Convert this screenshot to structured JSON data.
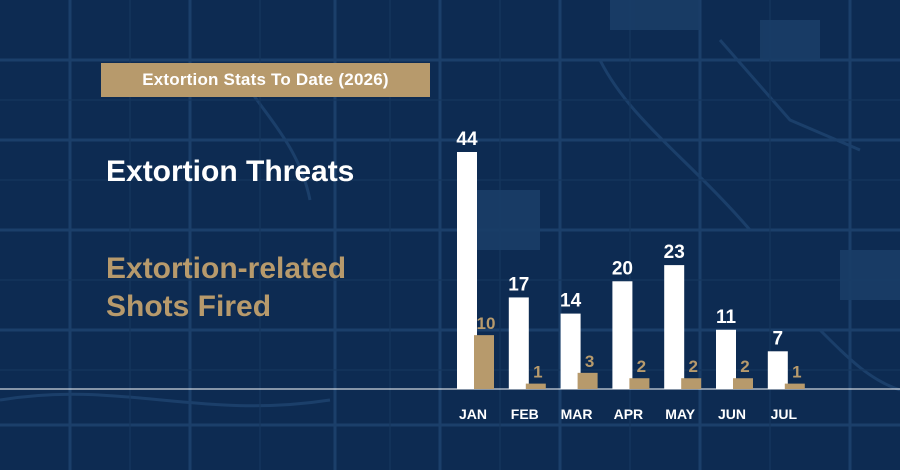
{
  "title": "Extortion Stats To Date (2026)",
  "legend": {
    "threats": "Extortion Threats",
    "shots": "Extortion-related Shots Fired"
  },
  "colors": {
    "background": "#0d2b52",
    "threats": "#ffffff",
    "shots": "#b79a6c",
    "map_lines": "#1f4470"
  },
  "chart_data": {
    "type": "bar",
    "title": "Extortion Stats To Date (2026)",
    "categories": [
      "JAN",
      "FEB",
      "MAR",
      "APR",
      "MAY",
      "JUN",
      "JUL"
    ],
    "series": [
      {
        "name": "Extortion Threats",
        "values": [
          44,
          17,
          14,
          20,
          23,
          11,
          7
        ]
      },
      {
        "name": "Extortion-related Shots Fired",
        "values": [
          10,
          1,
          3,
          2,
          2,
          2,
          1
        ]
      }
    ],
    "ylim": [
      0,
      44
    ],
    "grid": false,
    "legend": "left"
  }
}
